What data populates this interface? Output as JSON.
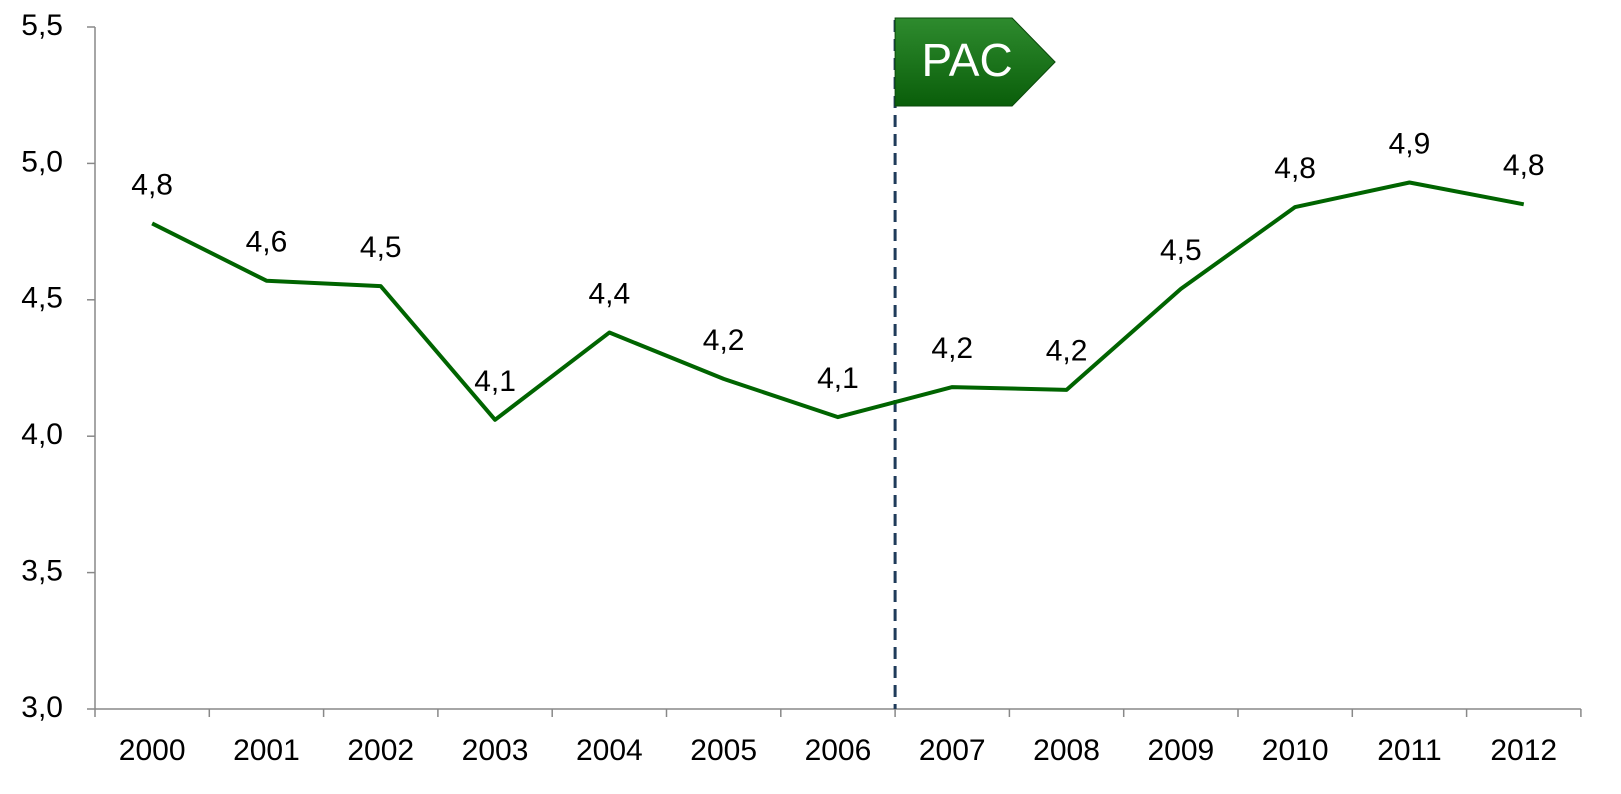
{
  "chart_data": {
    "type": "line",
    "categories": [
      "2000",
      "2001",
      "2002",
      "2003",
      "2004",
      "2005",
      "2006",
      "2007",
      "2008",
      "2009",
      "2010",
      "2011",
      "2012"
    ],
    "series": [
      {
        "name": "PAC",
        "color": "#006400",
        "values": [
          4.78,
          4.57,
          4.55,
          4.06,
          4.38,
          4.21,
          4.07,
          4.18,
          4.17,
          4.54,
          4.84,
          4.93,
          4.85
        ],
        "value_labels": [
          "4,8",
          "4,6",
          "4,5",
          "4,1",
          "4,4",
          "4,2",
          "4,1",
          "4,2",
          "4,2",
          "4,5",
          "4,8",
          "4,9",
          "4,8"
        ]
      }
    ],
    "annotation": "PAC",
    "ylim": [
      3.0,
      5.5
    ],
    "yticks": [
      {
        "value": 3.0,
        "label": "3,0"
      },
      {
        "value": 3.5,
        "label": "3,5"
      },
      {
        "value": 4.0,
        "label": "4,0"
      },
      {
        "value": 4.5,
        "label": "4,5"
      },
      {
        "value": 5.0,
        "label": "5,0"
      },
      {
        "value": 5.5,
        "label": "5,5"
      }
    ],
    "grid": false
  }
}
